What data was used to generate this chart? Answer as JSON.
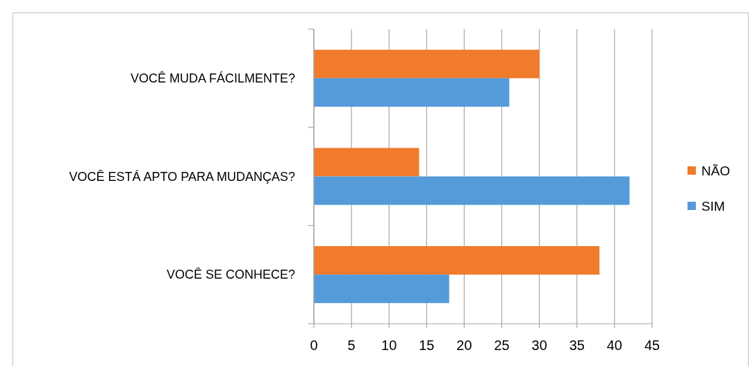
{
  "chart_data": {
    "type": "bar",
    "orientation": "horizontal",
    "categories": [
      "VOCÊ MUDA FÁCILMENTE?",
      "VOCÊ ESTÁ APTO PARA MUDANÇAS?",
      "VOCÊ SE CONHECE?"
    ],
    "series": [
      {
        "name": "NÃO",
        "color": "#f07b2b",
        "values": [
          30,
          14,
          38
        ]
      },
      {
        "name": "SIM",
        "color": "#559ad9",
        "values": [
          26,
          42,
          18
        ]
      }
    ],
    "xlim": [
      0,
      45
    ],
    "xticks": [
      0,
      5,
      10,
      15,
      20,
      25,
      30,
      35,
      40,
      45
    ],
    "grid": "x",
    "legend": "right"
  }
}
